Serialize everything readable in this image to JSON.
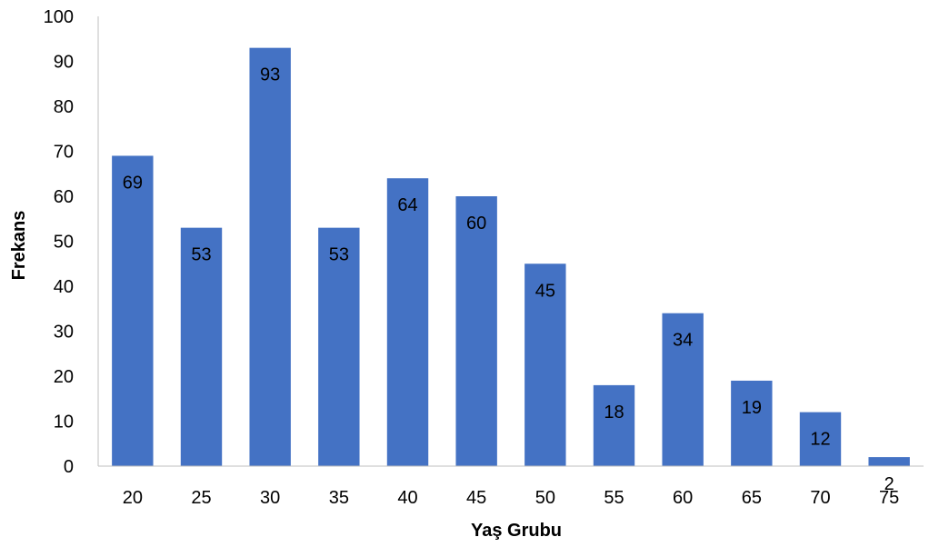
{
  "chart_data": {
    "type": "bar",
    "title": "",
    "xlabel": "Yaş Grubu",
    "ylabel": "Frekans",
    "categories": [
      "20",
      "25",
      "30",
      "35",
      "40",
      "45",
      "50",
      "55",
      "60",
      "65",
      "70",
      "75"
    ],
    "values": [
      69,
      53,
      93,
      53,
      64,
      60,
      45,
      18,
      34,
      19,
      12,
      2
    ],
    "data_labels": [
      "69",
      "53",
      "93",
      "53",
      "64",
      "60",
      "45",
      "18",
      "34",
      "19",
      "12",
      "2"
    ],
    "ylim": [
      0,
      100
    ],
    "yticks": [
      "0",
      "10",
      "20",
      "30",
      "40",
      "50",
      "60",
      "70",
      "80",
      "90",
      "100"
    ],
    "grid": false,
    "legend": "none",
    "bar_color": "#4472C4"
  }
}
